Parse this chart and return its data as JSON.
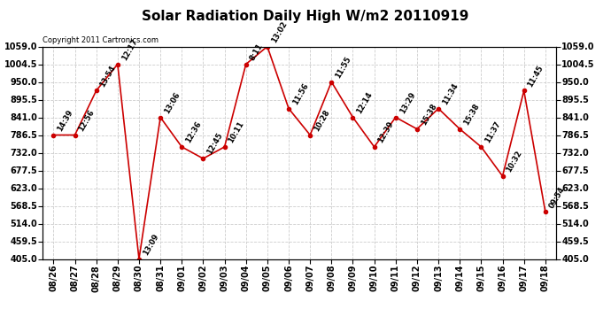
{
  "title": "Solar Radiation Daily High W/m2 20110919",
  "copyright": "Copyright 2011 Cartronics.com",
  "x_labels": [
    "08/26",
    "08/27",
    "08/28",
    "08/29",
    "08/30",
    "08/31",
    "09/01",
    "09/02",
    "09/03",
    "09/04",
    "09/05",
    "09/06",
    "09/07",
    "09/08",
    "09/09",
    "09/10",
    "09/11",
    "09/12",
    "09/13",
    "09/14",
    "09/15",
    "09/16",
    "09/17",
    "09/18"
  ],
  "y_values": [
    786.5,
    786.5,
    923.0,
    1004.5,
    405.0,
    841.0,
    750.0,
    714.0,
    750.0,
    1004.5,
    1059.0,
    868.0,
    786.5,
    950.0,
    841.0,
    750.0,
    841.0,
    805.0,
    868.0,
    805.0,
    750.0,
    660.0,
    923.0,
    550.0
  ],
  "point_labels": [
    "14:39",
    "12:56",
    "13:54",
    "12:17",
    "13:09",
    "13:06",
    "12:36",
    "12:45",
    "10:11",
    "8:11",
    "13:02",
    "11:56",
    "10:28",
    "11:55",
    "12:14",
    "12:39",
    "13:29",
    "15:38",
    "11:34",
    "15:38",
    "11:37",
    "10:32",
    "11:45",
    "09:54"
  ],
  "ylim": [
    405.0,
    1059.0
  ],
  "yticks": [
    405.0,
    459.5,
    514.0,
    568.5,
    623.0,
    677.5,
    732.0,
    786.5,
    841.0,
    895.5,
    950.0,
    1004.5,
    1059.0
  ],
  "line_color": "#cc0000",
  "marker_color": "#cc0000",
  "background_color": "#ffffff",
  "grid_color": "#cccccc",
  "title_fontsize": 11,
  "tick_fontsize": 7,
  "point_label_fontsize": 6,
  "copyright_fontsize": 6
}
